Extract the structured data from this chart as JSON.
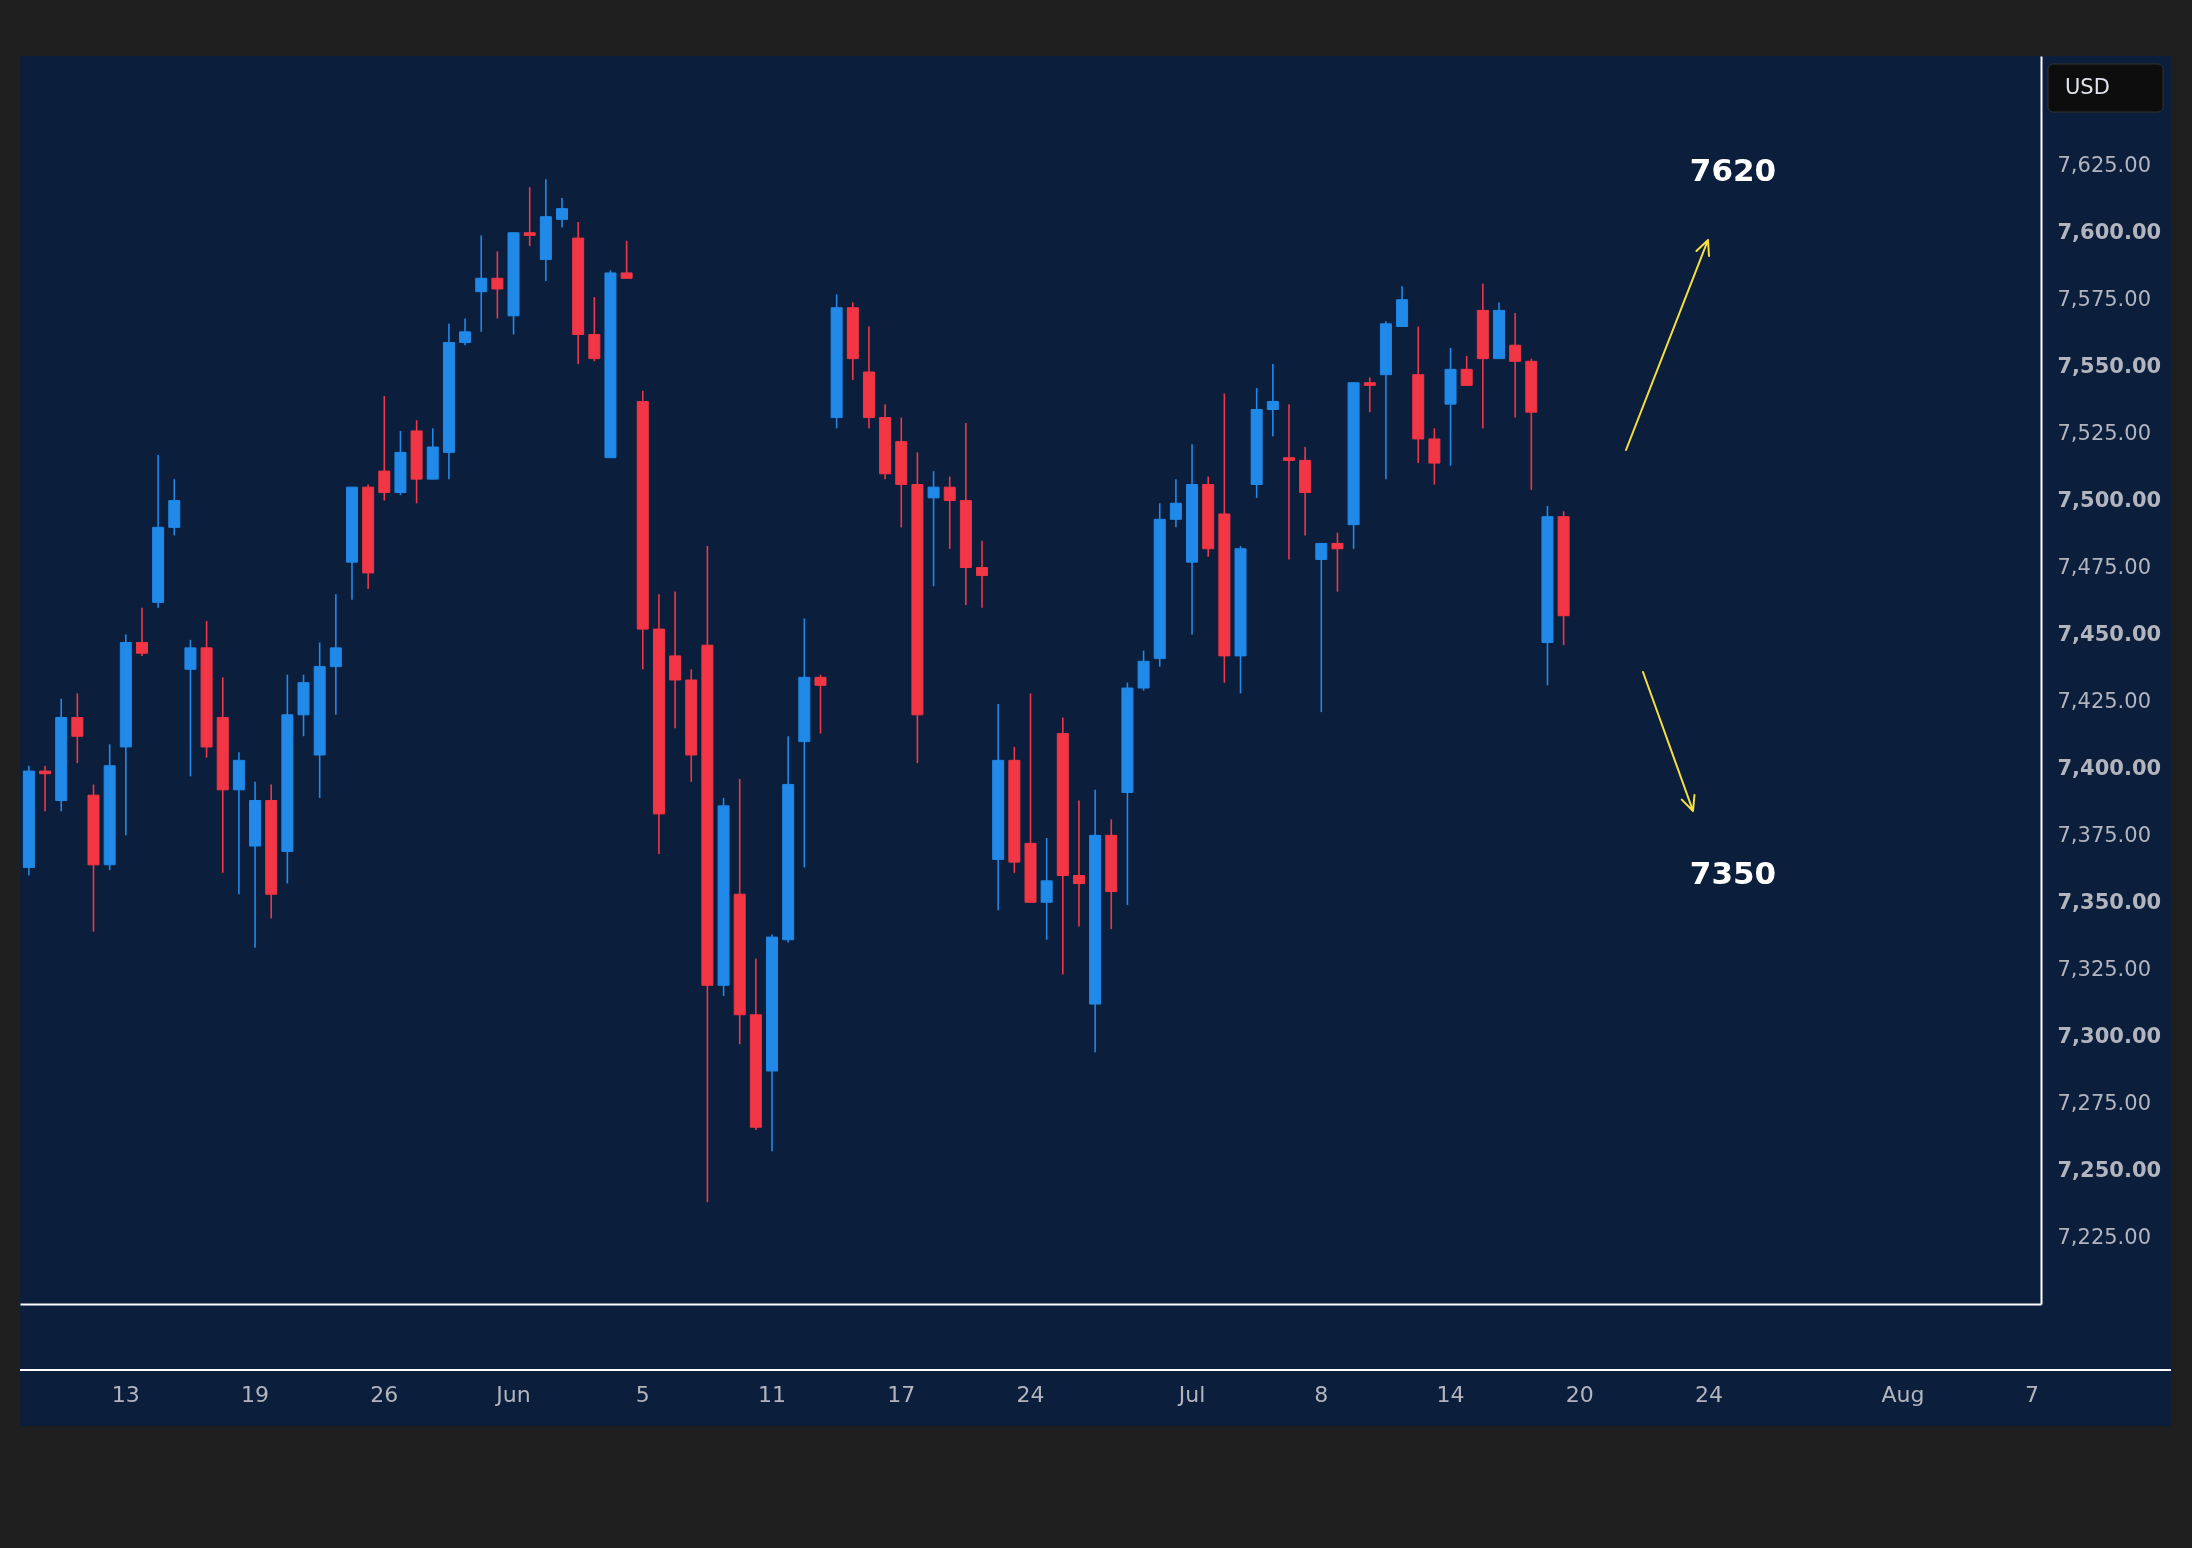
{
  "chart_data": {
    "type": "candlestick",
    "ylabel": "USD",
    "categories": [
      null,
      null,
      null,
      null,
      null,
      null,
      "13",
      null,
      null,
      null,
      null,
      null,
      null,
      null,
      "19",
      null,
      null,
      null,
      null,
      null,
      null,
      null,
      "26",
      null,
      null,
      null,
      null,
      null,
      null,
      null,
      "Jun",
      null,
      null,
      null,
      null,
      null,
      null,
      null,
      "5",
      null,
      null,
      null,
      null,
      null,
      null,
      null,
      "11",
      null,
      null,
      null,
      null,
      null,
      null,
      null,
      "17",
      null,
      null,
      null,
      null,
      null,
      null,
      null,
      "24",
      null,
      null,
      null,
      null,
      null,
      null,
      null,
      null,
      null,
      "Jul",
      null,
      null,
      null,
      null,
      null,
      null,
      null,
      "8",
      null,
      null,
      null,
      null,
      null,
      null,
      null,
      "14",
      null,
      null,
      null,
      null,
      null,
      null,
      null,
      "20",
      null,
      null,
      null,
      null,
      null,
      null,
      null,
      "24",
      null,
      null,
      null,
      null,
      null,
      null,
      null,
      null,
      null,
      null,
      null,
      "Aug",
      null,
      null,
      null,
      null,
      null,
      null,
      null,
      "7"
    ],
    "ohlc": [
      [
        7363,
        7401,
        7360,
        7399
      ],
      [
        7399,
        7401,
        7384,
        7398
      ],
      [
        7388,
        7426,
        7384,
        7419
      ],
      [
        7419,
        7428,
        7402,
        7412
      ],
      [
        7390,
        7394,
        7339,
        7364
      ],
      [
        7364,
        7409,
        7362,
        7401
      ],
      [
        7408,
        7450,
        7375,
        7447
      ],
      [
        7447,
        7460,
        7442,
        7443
      ],
      [
        7462,
        7517,
        7460,
        7490
      ],
      [
        7490,
        7508,
        7487,
        7500
      ],
      [
        7437,
        7448,
        7397,
        7445
      ],
      [
        7445,
        7455,
        7404,
        7408
      ],
      [
        7419,
        7434,
        7361,
        7392
      ],
      [
        7392,
        7406,
        7353,
        7403
      ],
      [
        7371,
        7395,
        7333,
        7388
      ],
      [
        7388,
        7394,
        7344,
        7353
      ],
      [
        7369,
        7435,
        7357,
        7420
      ],
      [
        7420,
        7435,
        7412,
        7432
      ],
      [
        7405,
        7447,
        7389,
        7438
      ],
      [
        7438,
        7465,
        7420,
        7445
      ],
      [
        7477,
        7505,
        7463,
        7505
      ],
      [
        7505,
        7506,
        7467,
        7473
      ],
      [
        7511,
        7539,
        7500,
        7503
      ],
      [
        7503,
        7526,
        7502,
        7518
      ],
      [
        7526,
        7530,
        7499,
        7508
      ],
      [
        7508,
        7527,
        7508,
        7520
      ],
      [
        7518,
        7566,
        7508,
        7559
      ],
      [
        7559,
        7568,
        7558,
        7563
      ],
      [
        7578,
        7599,
        7563,
        7583
      ],
      [
        7583,
        7593,
        7568,
        7579
      ],
      [
        7569,
        7600,
        7562,
        7600
      ],
      [
        7600,
        7617,
        7595,
        7599
      ],
      [
        7590,
        7620,
        7582,
        7606
      ],
      [
        7605,
        7613,
        7602,
        7609
      ],
      [
        7598,
        7604,
        7551,
        7562
      ],
      [
        7562,
        7576,
        7552,
        7553
      ],
      [
        7516,
        7586,
        7516,
        7585
      ],
      [
        7585,
        7597,
        7583,
        7583
      ],
      [
        7537,
        7541,
        7437,
        7452
      ],
      [
        7452,
        7465,
        7368,
        7383
      ],
      [
        7442,
        7466,
        7415,
        7433
      ],
      [
        7433,
        7437,
        7395,
        7405
      ],
      [
        7446,
        7483,
        7238,
        7319
      ],
      [
        7319,
        7389,
        7315,
        7386
      ],
      [
        7353,
        7396,
        7297,
        7308
      ],
      [
        7308,
        7329,
        7265,
        7266
      ],
      [
        7287,
        7338,
        7257,
        7337
      ],
      [
        7336,
        7412,
        7335,
        7394
      ],
      [
        7410,
        7456,
        7363,
        7434
      ],
      [
        7434,
        7435,
        7413,
        7431
      ],
      [
        7531,
        7577,
        7527,
        7572
      ],
      [
        7572,
        7574,
        7545,
        7553
      ],
      [
        7548,
        7565,
        7527,
        7531
      ],
      [
        7531,
        7536,
        7508,
        7510
      ],
      [
        7522,
        7531,
        7490,
        7506
      ],
      [
        7506,
        7518,
        7402,
        7420
      ],
      [
        7501,
        7511,
        7468,
        7505
      ],
      [
        7505,
        7509,
        7482,
        7500
      ],
      [
        7500,
        7529,
        7461,
        7475
      ],
      [
        7475,
        7485,
        7460,
        7472
      ],
      [
        7366,
        7424,
        7347,
        7403
      ],
      [
        7403,
        7408,
        7361,
        7365
      ],
      [
        7372,
        7428,
        7350,
        7350
      ],
      [
        7350,
        7374,
        7336,
        7358
      ],
      [
        7413,
        7419,
        7323,
        7360
      ],
      [
        7360,
        7388,
        7341,
        7357
      ],
      [
        7312,
        7392,
        7294,
        7375
      ],
      [
        7375,
        7381,
        7340,
        7354
      ],
      [
        7391,
        7432,
        7349,
        7430
      ],
      [
        7430,
        7444,
        7429,
        7440
      ],
      [
        7441,
        7499,
        7438,
        7493
      ],
      [
        7493,
        7508,
        7490,
        7499
      ],
      [
        7477,
        7521,
        7450,
        7506
      ],
      [
        7506,
        7509,
        7479,
        7482
      ],
      [
        7495,
        7540,
        7432,
        7442
      ],
      [
        7442,
        7483,
        7428,
        7482
      ],
      [
        7506,
        7542,
        7501,
        7534
      ],
      [
        7534,
        7551,
        7524,
        7537
      ],
      [
        7516,
        7536,
        7478,
        7515
      ],
      [
        7515,
        7520,
        7487,
        7503
      ],
      [
        7478,
        7484,
        7421,
        7484
      ],
      [
        7484,
        7488,
        7466,
        7482
      ],
      [
        7491,
        7544,
        7482,
        7544
      ],
      [
        7544,
        7546,
        7533,
        7543
      ],
      [
        7547,
        7567,
        7508,
        7566
      ],
      [
        7565,
        7580,
        7565,
        7575
      ],
      [
        7547,
        7565,
        7514,
        7523
      ],
      [
        7523,
        7527,
        7506,
        7514
      ],
      [
        7536,
        7557,
        7513,
        7549
      ],
      [
        7549,
        7554,
        7543,
        7543
      ],
      [
        7571,
        7581,
        7527,
        7553
      ],
      [
        7553,
        7574,
        7553,
        7571
      ],
      [
        7558,
        7570,
        7531,
        7552
      ],
      [
        7552,
        7553,
        7504,
        7533
      ],
      [
        7447,
        7498,
        7431,
        7494
      ],
      [
        7494,
        7496,
        7446,
        7457
      ],
      null,
      null,
      null,
      null,
      null,
      null,
      null,
      null,
      null,
      null,
      null,
      null,
      null,
      null,
      null,
      null,
      null,
      null,
      null,
      null,
      null,
      null,
      null,
      null,
      null,
      null,
      null,
      null,
      null
    ],
    "ylim": [
      7200,
      7666
    ],
    "yticks": [
      {
        "value": 7225,
        "label": "7,225.00"
      },
      {
        "value": 7250,
        "label": "7,250.00"
      },
      {
        "value": 7275,
        "label": "7,275.00"
      },
      {
        "value": 7300,
        "label": "7,300.00"
      },
      {
        "value": 7325,
        "label": "7,325.00"
      },
      {
        "value": 7350,
        "label": "7,350.00"
      },
      {
        "value": 7375,
        "label": "7,375.00"
      },
      {
        "value": 7400,
        "label": "7,400.00"
      },
      {
        "value": 7425,
        "label": "7,425.00"
      },
      {
        "value": 7450,
        "label": "7,450.00"
      },
      {
        "value": 7475,
        "label": "7,475.00"
      },
      {
        "value": 7500,
        "label": "7,500.00"
      },
      {
        "value": 7525,
        "label": "7,525.00"
      },
      {
        "value": 7550,
        "label": "7,550.00"
      },
      {
        "value": 7575,
        "label": "7,575.00"
      },
      {
        "value": 7600,
        "label": "7,600.00"
      },
      {
        "value": 7625,
        "label": "7,625.00"
      }
    ],
    "annotations": [
      "7620",
      "7350"
    ]
  }
}
